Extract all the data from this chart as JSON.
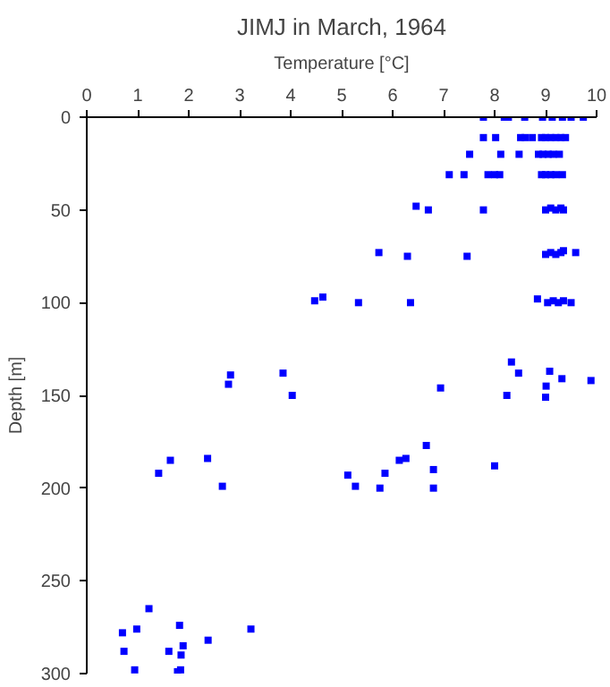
{
  "chart_data": {
    "type": "scatter",
    "title": "JIMJ in March, 1964",
    "xlabel": "Temperature [°C]",
    "ylabel": "Depth [m]",
    "xlim": [
      0,
      10
    ],
    "xticks": [
      0,
      1,
      2,
      3,
      4,
      5,
      6,
      7,
      8,
      9,
      10
    ],
    "ylim": [
      300,
      0
    ],
    "yticks": [
      0,
      50,
      100,
      150,
      200,
      250,
      300
    ],
    "grid": false,
    "marker": "square",
    "series": [
      {
        "color": "#0000ff",
        "x": [
          7.78,
          8.19,
          8.27,
          8.59,
          8.94,
          9.13,
          9.33,
          9.5,
          9.74,
          7.78,
          8.02,
          8.51,
          8.6,
          8.74,
          8.92,
          9.0,
          9.1,
          9.2,
          9.3,
          9.39,
          7.51,
          8.12,
          8.48,
          8.86,
          8.95,
          9.05,
          9.15,
          9.27,
          7.11,
          7.4,
          7.87,
          8.0,
          8.1,
          8.92,
          9.0,
          9.1,
          9.2,
          9.33,
          6.46,
          6.7,
          7.78,
          9.0,
          9.1,
          9.2,
          9.3,
          9.35,
          5.73,
          6.29,
          7.46,
          9.0,
          9.1,
          9.2,
          9.3,
          9.35,
          9.59,
          4.47,
          4.63,
          5.33,
          6.35,
          8.84,
          9.04,
          9.15,
          9.25,
          9.35,
          9.5,
          2.78,
          2.82,
          3.85,
          4.03,
          6.94,
          8.24,
          8.33,
          8.47,
          9.01,
          9.0,
          9.08,
          9.32,
          9.89,
          6.66,
          6.8,
          6.8,
          8.0,
          1.41,
          1.64,
          2.37,
          2.66,
          5.12,
          5.27,
          5.75,
          5.85,
          6.13,
          6.26,
          1.22,
          0.7,
          0.98,
          1.82,
          0.73,
          1.61,
          1.89,
          1.85,
          2.38,
          3.22,
          0.94,
          1.78,
          1.84
        ],
        "values": [
          0,
          0,
          0,
          0,
          0,
          0,
          0,
          0,
          0,
          11,
          11,
          11,
          11,
          11,
          11,
          11,
          11,
          11,
          11,
          11,
          20,
          20,
          20,
          20,
          20,
          20,
          20,
          20,
          31,
          31,
          31,
          31,
          31,
          31,
          31,
          31,
          31,
          31,
          48,
          50,
          50,
          50,
          49,
          50,
          49,
          50,
          73,
          75,
          75,
          74,
          73,
          74,
          73,
          72,
          73,
          99,
          97,
          100,
          100,
          98,
          100,
          99,
          100,
          99,
          100,
          144,
          139,
          138,
          150,
          146,
          150,
          132,
          138,
          145,
          151,
          137,
          141,
          142,
          177,
          190,
          200,
          188,
          192,
          185,
          184,
          199,
          193,
          199,
          200,
          192,
          185,
          184,
          265,
          278,
          276,
          274,
          288,
          288,
          285,
          290,
          282,
          276,
          298,
          299,
          298
        ]
      }
    ]
  }
}
